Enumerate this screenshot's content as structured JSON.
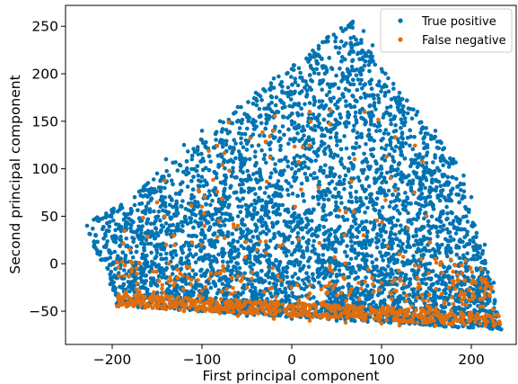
{
  "chart_data": {
    "type": "scatter",
    "title": "",
    "xlabel": "First principal component",
    "ylabel": "Second principal component",
    "xlim": [
      -252,
      250
    ],
    "ylim": [
      -85,
      272
    ],
    "xticks": [
      -200,
      -100,
      0,
      100,
      200
    ],
    "yticks": [
      -50,
      0,
      50,
      100,
      150,
      200,
      250
    ],
    "grid": false,
    "legend_position": "top-right",
    "region": {
      "description_points": [
        [
          -230,
          42
        ],
        [
          -195,
          60
        ],
        [
          65,
          258
        ],
        [
          105,
          200
        ],
        [
          190,
          100
        ],
        [
          235,
          -70
        ],
        [
          -195,
          -45
        ]
      ]
    },
    "series": [
      {
        "name": "True positive",
        "color": "#0173b2",
        "approx_count": 5500,
        "points": [
          [
            -228,
            40
          ],
          [
            -215,
            45
          ],
          [
            -200,
            55
          ],
          [
            -190,
            62
          ],
          [
            -175,
            70
          ],
          [
            -160,
            85
          ],
          [
            -150,
            95
          ],
          [
            -140,
            110
          ],
          [
            -120,
            125
          ],
          [
            -100,
            140
          ],
          [
            -80,
            150
          ],
          [
            -60,
            165
          ],
          [
            -40,
            180
          ],
          [
            -20,
            195
          ],
          [
            0,
            205
          ],
          [
            20,
            220
          ],
          [
            40,
            238
          ],
          [
            55,
            248
          ],
          [
            68,
            255
          ],
          [
            80,
            245
          ],
          [
            90,
            230
          ],
          [
            100,
            205
          ],
          [
            120,
            180
          ],
          [
            140,
            160
          ],
          [
            160,
            140
          ],
          [
            180,
            110
          ],
          [
            200,
            70
          ],
          [
            215,
            20
          ],
          [
            225,
            -20
          ],
          [
            230,
            -55
          ],
          [
            -190,
            -40
          ],
          [
            -150,
            -45
          ],
          [
            -100,
            -50
          ],
          [
            -50,
            -55
          ],
          [
            0,
            -58
          ],
          [
            50,
            -60
          ],
          [
            100,
            -62
          ],
          [
            150,
            -64
          ],
          [
            200,
            -66
          ],
          [
            0,
            0
          ],
          [
            0,
            50
          ],
          [
            0,
            100
          ],
          [
            50,
            50
          ],
          [
            -50,
            50
          ],
          [
            100,
            50
          ],
          [
            -100,
            50
          ],
          [
            150,
            50
          ],
          [
            -150,
            20
          ],
          [
            50,
            150
          ],
          [
            -50,
            120
          ],
          [
            100,
            100
          ],
          [
            0,
            150
          ],
          [
            30,
            200
          ]
        ]
      },
      {
        "name": "False negative",
        "color": "#de6e0f",
        "approx_count": 950,
        "points": [
          [
            -190,
            -42
          ],
          [
            -185,
            -30
          ],
          [
            -170,
            -40
          ],
          [
            -160,
            -45
          ],
          [
            -150,
            -38
          ],
          [
            -140,
            -48
          ],
          [
            -120,
            -50
          ],
          [
            -100,
            -45
          ],
          [
            -80,
            -52
          ],
          [
            -60,
            -55
          ],
          [
            -40,
            -50
          ],
          [
            -20,
            -58
          ],
          [
            0,
            -56
          ],
          [
            20,
            -60
          ],
          [
            40,
            -58
          ],
          [
            60,
            -62
          ],
          [
            80,
            -60
          ],
          [
            100,
            -63
          ],
          [
            120,
            -65
          ],
          [
            140,
            -62
          ],
          [
            160,
            -65
          ],
          [
            180,
            -60
          ],
          [
            200,
            -58
          ],
          [
            210,
            -45
          ],
          [
            220,
            -55
          ],
          [
            225,
            -65
          ],
          [
            215,
            -35
          ],
          [
            205,
            -20
          ],
          [
            190,
            -10
          ],
          [
            175,
            -25
          ],
          [
            160,
            5
          ],
          [
            140,
            -15
          ],
          [
            120,
            10
          ],
          [
            100,
            -20
          ],
          [
            80,
            30
          ],
          [
            60,
            55
          ],
          [
            40,
            -30
          ],
          [
            20,
            160
          ],
          [
            -20,
            140
          ],
          [
            -60,
            40
          ],
          [
            -100,
            60
          ],
          [
            -140,
            20
          ],
          [
            -180,
            15
          ],
          [
            -130,
            -20
          ],
          [
            -90,
            -10
          ],
          [
            -50,
            -25
          ],
          [
            -10,
            20
          ],
          [
            30,
            80
          ],
          [
            70,
            110
          ],
          [
            110,
            90
          ],
          [
            150,
            50
          ]
        ]
      }
    ]
  }
}
